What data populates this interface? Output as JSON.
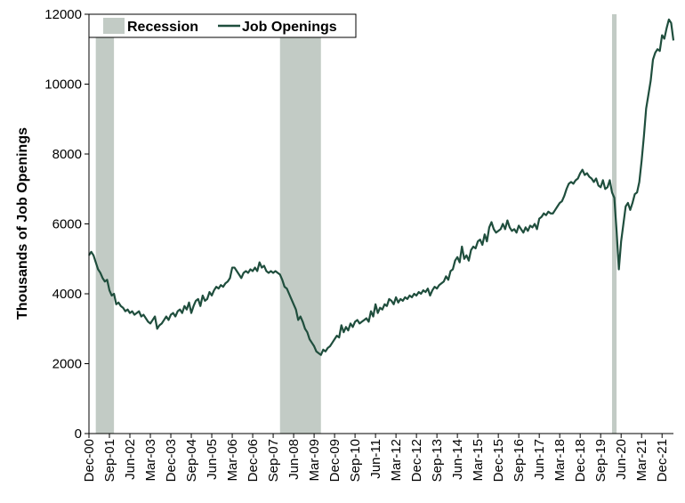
{
  "chart_data": {
    "type": "line",
    "title": "",
    "xlabel": "",
    "ylabel": "Thousands of Job Openings",
    "ylim": [
      0,
      12000
    ],
    "yticks": [
      0,
      2000,
      4000,
      6000,
      8000,
      10000,
      12000
    ],
    "xlim": [
      "2000-12",
      "2022-05"
    ],
    "xticks": [
      "Dec-00",
      "Sep-01",
      "Jun-02",
      "Mar-03",
      "Dec-03",
      "Sep-04",
      "Jun-05",
      "Mar-06",
      "Dec-06",
      "Sep-07",
      "Jun-08",
      "Mar-09",
      "Dec-09",
      "Sep-10",
      "Jun-11",
      "Mar-12",
      "Dec-12",
      "Sep-13",
      "Jun-14",
      "Mar-15",
      "Dec-15",
      "Sep-16",
      "Jun-17",
      "Mar-18",
      "Dec-18",
      "Sep-19",
      "Jun-20",
      "Mar-21",
      "Dec-21"
    ],
    "grid": false,
    "legend": {
      "placement": "top-left",
      "entries": [
        "Recession",
        "Job Openings"
      ]
    },
    "recessions": [
      {
        "name": "Recession",
        "start": "2001-03",
        "end": "2001-11"
      },
      {
        "name": "Recession",
        "start": "2007-12",
        "end": "2009-06"
      },
      {
        "name": "Recession",
        "start": "2020-02",
        "end": "2020-04"
      }
    ],
    "series": [
      {
        "name": "Job Openings",
        "points": [
          [
            "2000-12",
            5100
          ],
          [
            "2001-01",
            5200
          ],
          [
            "2001-02",
            5100
          ],
          [
            "2001-03",
            4900
          ],
          [
            "2001-04",
            4700
          ],
          [
            "2001-05",
            4600
          ],
          [
            "2001-06",
            4450
          ],
          [
            "2001-07",
            4350
          ],
          [
            "2001-08",
            4400
          ],
          [
            "2001-09",
            4100
          ],
          [
            "2001-10",
            3950
          ],
          [
            "2001-11",
            4000
          ],
          [
            "2001-12",
            3700
          ],
          [
            "2002-01",
            3750
          ],
          [
            "2002-02",
            3650
          ],
          [
            "2002-03",
            3600
          ],
          [
            "2002-04",
            3500
          ],
          [
            "2002-05",
            3550
          ],
          [
            "2002-06",
            3450
          ],
          [
            "2002-07",
            3500
          ],
          [
            "2002-08",
            3400
          ],
          [
            "2002-09",
            3450
          ],
          [
            "2002-10",
            3500
          ],
          [
            "2002-11",
            3350
          ],
          [
            "2002-12",
            3400
          ],
          [
            "2003-01",
            3300
          ],
          [
            "2003-02",
            3200
          ],
          [
            "2003-03",
            3150
          ],
          [
            "2003-04",
            3250
          ],
          [
            "2003-05",
            3350
          ],
          [
            "2003-06",
            3000
          ],
          [
            "2003-07",
            3100
          ],
          [
            "2003-08",
            3150
          ],
          [
            "2003-09",
            3250
          ],
          [
            "2003-10",
            3350
          ],
          [
            "2003-11",
            3250
          ],
          [
            "2003-12",
            3400
          ],
          [
            "2004-01",
            3450
          ],
          [
            "2004-02",
            3350
          ],
          [
            "2004-03",
            3500
          ],
          [
            "2004-04",
            3550
          ],
          [
            "2004-05",
            3450
          ],
          [
            "2004-06",
            3650
          ],
          [
            "2004-07",
            3550
          ],
          [
            "2004-08",
            3750
          ],
          [
            "2004-09",
            3450
          ],
          [
            "2004-10",
            3650
          ],
          [
            "2004-11",
            3800
          ],
          [
            "2004-12",
            3850
          ],
          [
            "2005-01",
            3650
          ],
          [
            "2005-02",
            3950
          ],
          [
            "2005-03",
            3800
          ],
          [
            "2005-04",
            3850
          ],
          [
            "2005-05",
            4050
          ],
          [
            "2005-06",
            3950
          ],
          [
            "2005-07",
            4100
          ],
          [
            "2005-08",
            4200
          ],
          [
            "2005-09",
            4150
          ],
          [
            "2005-10",
            4250
          ],
          [
            "2005-11",
            4200
          ],
          [
            "2005-12",
            4300
          ],
          [
            "2006-01",
            4350
          ],
          [
            "2006-02",
            4450
          ],
          [
            "2006-03",
            4750
          ],
          [
            "2006-04",
            4750
          ],
          [
            "2006-05",
            4650
          ],
          [
            "2006-06",
            4550
          ],
          [
            "2006-07",
            4450
          ],
          [
            "2006-08",
            4600
          ],
          [
            "2006-09",
            4650
          ],
          [
            "2006-10",
            4600
          ],
          [
            "2006-11",
            4700
          ],
          [
            "2006-12",
            4650
          ],
          [
            "2007-01",
            4750
          ],
          [
            "2007-02",
            4650
          ],
          [
            "2007-03",
            4900
          ],
          [
            "2007-04",
            4750
          ],
          [
            "2007-05",
            4800
          ],
          [
            "2007-06",
            4650
          ],
          [
            "2007-07",
            4600
          ],
          [
            "2007-08",
            4650
          ],
          [
            "2007-09",
            4600
          ],
          [
            "2007-10",
            4650
          ],
          [
            "2007-11",
            4600
          ],
          [
            "2007-12",
            4550
          ],
          [
            "2008-01",
            4400
          ],
          [
            "2008-02",
            4200
          ],
          [
            "2008-03",
            4150
          ],
          [
            "2008-04",
            4000
          ],
          [
            "2008-05",
            3850
          ],
          [
            "2008-06",
            3700
          ],
          [
            "2008-07",
            3550
          ],
          [
            "2008-08",
            3250
          ],
          [
            "2008-09",
            3350
          ],
          [
            "2008-10",
            3200
          ],
          [
            "2008-11",
            3000
          ],
          [
            "2008-12",
            2900
          ],
          [
            "2009-01",
            2700
          ],
          [
            "2009-02",
            2600
          ],
          [
            "2009-03",
            2500
          ],
          [
            "2009-04",
            2350
          ],
          [
            "2009-05",
            2300
          ],
          [
            "2009-06",
            2250
          ],
          [
            "2009-07",
            2400
          ],
          [
            "2009-08",
            2350
          ],
          [
            "2009-09",
            2450
          ],
          [
            "2009-10",
            2500
          ],
          [
            "2009-11",
            2600
          ],
          [
            "2009-12",
            2700
          ],
          [
            "2010-01",
            2800
          ],
          [
            "2010-02",
            2750
          ],
          [
            "2010-03",
            3100
          ],
          [
            "2010-04",
            2900
          ],
          [
            "2010-05",
            3050
          ],
          [
            "2010-06",
            2950
          ],
          [
            "2010-07",
            3150
          ],
          [
            "2010-08",
            3050
          ],
          [
            "2010-09",
            3200
          ],
          [
            "2010-10",
            3250
          ],
          [
            "2010-11",
            3150
          ],
          [
            "2010-12",
            3200
          ],
          [
            "2011-01",
            3250
          ],
          [
            "2011-02",
            3300
          ],
          [
            "2011-03",
            3200
          ],
          [
            "2011-04",
            3500
          ],
          [
            "2011-05",
            3350
          ],
          [
            "2011-06",
            3700
          ],
          [
            "2011-07",
            3450
          ],
          [
            "2011-08",
            3600
          ],
          [
            "2011-09",
            3550
          ],
          [
            "2011-10",
            3700
          ],
          [
            "2011-11",
            3650
          ],
          [
            "2011-12",
            3850
          ],
          [
            "2012-01",
            3800
          ],
          [
            "2012-02",
            3700
          ],
          [
            "2012-03",
            3900
          ],
          [
            "2012-04",
            3750
          ],
          [
            "2012-05",
            3850
          ],
          [
            "2012-06",
            3800
          ],
          [
            "2012-07",
            3900
          ],
          [
            "2012-08",
            3850
          ],
          [
            "2012-09",
            3950
          ],
          [
            "2012-10",
            3900
          ],
          [
            "2012-11",
            4000
          ],
          [
            "2012-12",
            3950
          ],
          [
            "2013-01",
            4050
          ],
          [
            "2013-02",
            4000
          ],
          [
            "2013-03",
            4100
          ],
          [
            "2013-04",
            4050
          ],
          [
            "2013-05",
            4150
          ],
          [
            "2013-06",
            3950
          ],
          [
            "2013-07",
            4100
          ],
          [
            "2013-08",
            4200
          ],
          [
            "2013-09",
            4150
          ],
          [
            "2013-10",
            4250
          ],
          [
            "2013-11",
            4300
          ],
          [
            "2013-12",
            4350
          ],
          [
            "2014-01",
            4500
          ],
          [
            "2014-02",
            4400
          ],
          [
            "2014-03",
            4650
          ],
          [
            "2014-04",
            4700
          ],
          [
            "2014-05",
            4950
          ],
          [
            "2014-06",
            5050
          ],
          [
            "2014-07",
            4900
          ],
          [
            "2014-08",
            5350
          ],
          [
            "2014-09",
            5000
          ],
          [
            "2014-10",
            5100
          ],
          [
            "2014-11",
            4950
          ],
          [
            "2014-12",
            5250
          ],
          [
            "2015-01",
            5350
          ],
          [
            "2015-02",
            5300
          ],
          [
            "2015-03",
            5500
          ],
          [
            "2015-04",
            5550
          ],
          [
            "2015-05",
            5400
          ],
          [
            "2015-06",
            5700
          ],
          [
            "2015-07",
            5500
          ],
          [
            "2015-08",
            5900
          ],
          [
            "2015-09",
            6050
          ],
          [
            "2015-10",
            5850
          ],
          [
            "2015-11",
            5750
          ],
          [
            "2015-12",
            5800
          ],
          [
            "2016-01",
            5850
          ],
          [
            "2016-02",
            6000
          ],
          [
            "2016-03",
            5850
          ],
          [
            "2016-04",
            6100
          ],
          [
            "2016-05",
            5900
          ],
          [
            "2016-06",
            5800
          ],
          [
            "2016-07",
            5850
          ],
          [
            "2016-08",
            5750
          ],
          [
            "2016-09",
            5950
          ],
          [
            "2016-10",
            5850
          ],
          [
            "2016-11",
            5750
          ],
          [
            "2016-12",
            5900
          ],
          [
            "2017-01",
            5800
          ],
          [
            "2017-02",
            5950
          ],
          [
            "2017-03",
            5900
          ],
          [
            "2017-04",
            6000
          ],
          [
            "2017-05",
            5850
          ],
          [
            "2017-06",
            6150
          ],
          [
            "2017-07",
            6200
          ],
          [
            "2017-08",
            6300
          ],
          [
            "2017-09",
            6250
          ],
          [
            "2017-10",
            6350
          ],
          [
            "2017-11",
            6300
          ],
          [
            "2017-12",
            6300
          ],
          [
            "2018-01",
            6400
          ],
          [
            "2018-02",
            6500
          ],
          [
            "2018-03",
            6600
          ],
          [
            "2018-04",
            6650
          ],
          [
            "2018-05",
            6800
          ],
          [
            "2018-06",
            7000
          ],
          [
            "2018-07",
            7150
          ],
          [
            "2018-08",
            7200
          ],
          [
            "2018-09",
            7150
          ],
          [
            "2018-10",
            7250
          ],
          [
            "2018-11",
            7300
          ],
          [
            "2018-12",
            7450
          ],
          [
            "2019-01",
            7550
          ],
          [
            "2019-02",
            7400
          ],
          [
            "2019-03",
            7450
          ],
          [
            "2019-04",
            7350
          ],
          [
            "2019-05",
            7300
          ],
          [
            "2019-06",
            7200
          ],
          [
            "2019-07",
            7300
          ],
          [
            "2019-08",
            7100
          ],
          [
            "2019-09",
            7050
          ],
          [
            "2019-10",
            7250
          ],
          [
            "2019-11",
            7000
          ],
          [
            "2019-12",
            7050
          ],
          [
            "2020-01",
            7250
          ],
          [
            "2020-02",
            6900
          ],
          [
            "2020-03",
            6750
          ],
          [
            "2020-04",
            5800
          ],
          [
            "2020-05",
            4700
          ],
          [
            "2020-06",
            5500
          ],
          [
            "2020-07",
            6000
          ],
          [
            "2020-08",
            6500
          ],
          [
            "2020-09",
            6600
          ],
          [
            "2020-10",
            6400
          ],
          [
            "2020-11",
            6600
          ],
          [
            "2020-12",
            6850
          ],
          [
            "2021-01",
            6900
          ],
          [
            "2021-02",
            7200
          ],
          [
            "2021-03",
            7800
          ],
          [
            "2021-04",
            8500
          ],
          [
            "2021-05",
            9300
          ],
          [
            "2021-06",
            9700
          ],
          [
            "2021-07",
            10100
          ],
          [
            "2021-08",
            10700
          ],
          [
            "2021-09",
            10900
          ],
          [
            "2021-10",
            11000
          ],
          [
            "2021-11",
            10950
          ],
          [
            "2021-12",
            11400
          ],
          [
            "2022-01",
            11300
          ],
          [
            "2022-02",
            11600
          ],
          [
            "2022-03",
            11850
          ],
          [
            "2022-04",
            11750
          ],
          [
            "2022-05",
            11250
          ]
        ]
      }
    ],
    "colors": {
      "line": "#1f4e3d",
      "recession": "#c2cbc5",
      "axis": "#000000"
    }
  }
}
